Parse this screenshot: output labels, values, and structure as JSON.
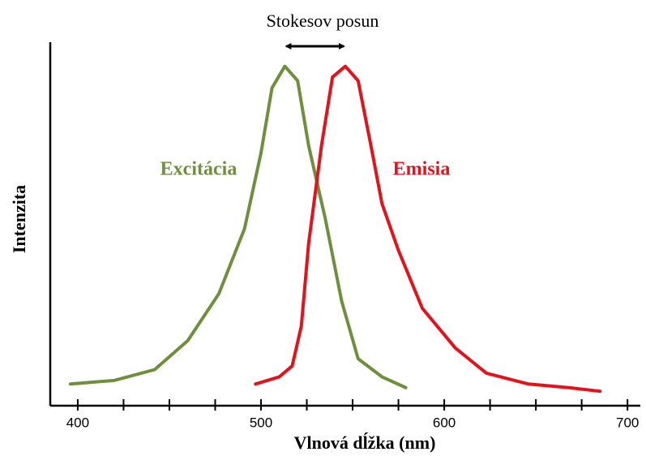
{
  "chart_data": {
    "type": "line",
    "annotation": "Stokesov posun",
    "xlabel": "Vlnová dĺžka (nm)",
    "ylabel": "Intenzita",
    "xlim": [
      385,
      707
    ],
    "ylim": [
      0,
      100
    ],
    "xticks": [
      400,
      500,
      600,
      700
    ],
    "xticks_minor": [
      425,
      450,
      475,
      525,
      550,
      575,
      625,
      650,
      675
    ],
    "series": [
      {
        "name": "Excitácia",
        "color": "#6e8f3c",
        "x": [
          396,
          420,
          442,
          460,
          477,
          491,
          500,
          506,
          513,
          520,
          526,
          535,
          544,
          553,
          566,
          579
        ],
        "values": [
          6,
          7,
          10,
          18,
          31,
          49,
          70,
          88,
          94,
          90,
          72,
          52,
          29,
          13,
          8,
          5
        ]
      },
      {
        "name": "Emisia",
        "color": "#e3131c",
        "x": [
          497,
          510,
          517,
          522,
          526,
          533,
          539,
          546,
          553,
          560,
          566,
          575,
          588,
          606,
          623,
          646,
          668,
          685
        ],
        "values": [
          6,
          8,
          11,
          22,
          45,
          72,
          91,
          94,
          90,
          72,
          56,
          43,
          27,
          16,
          9,
          6,
          5,
          4
        ]
      }
    ]
  }
}
